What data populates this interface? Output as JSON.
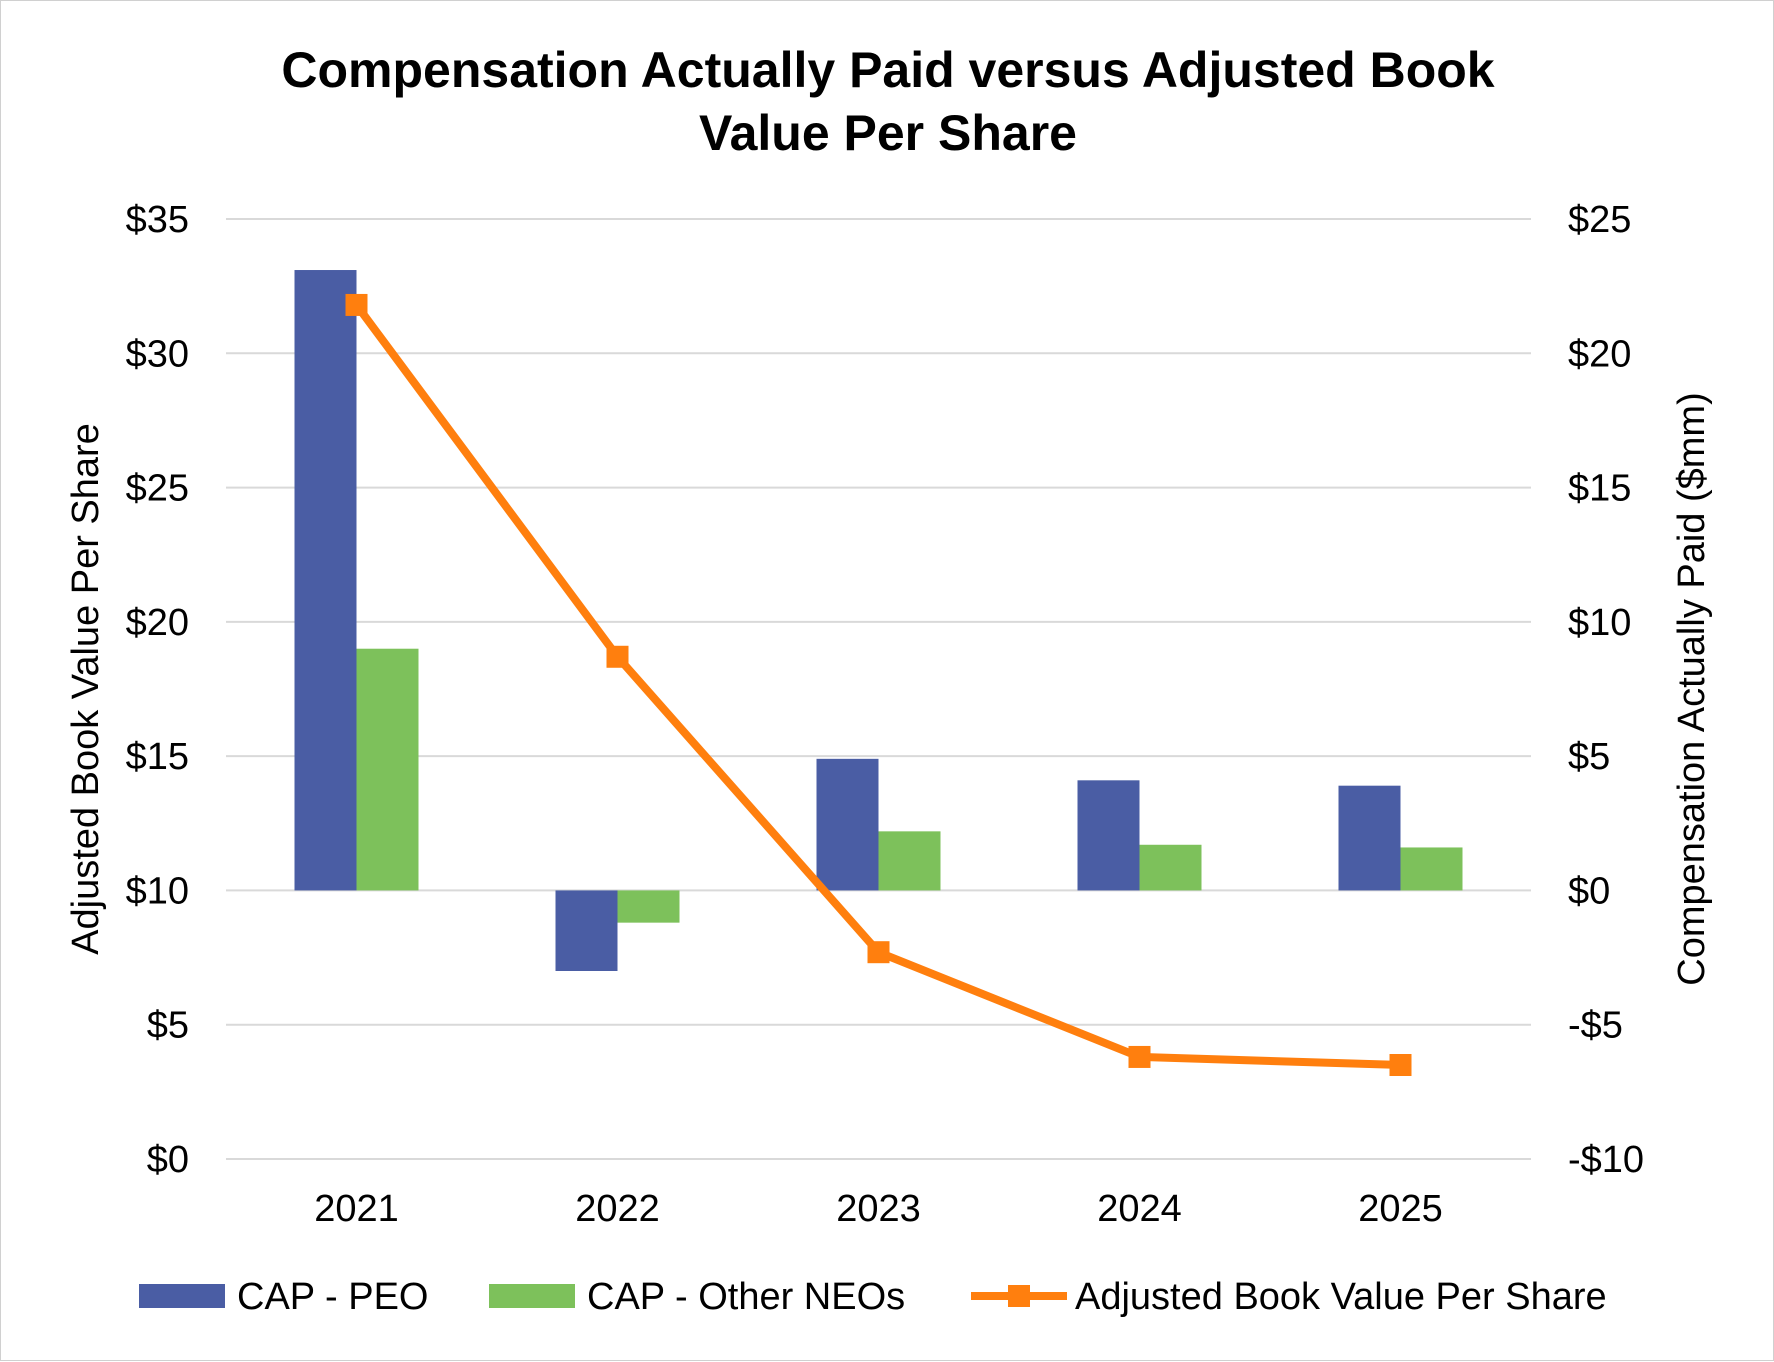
{
  "chart_data": {
    "type": "bar",
    "title": "Compensation Actually Paid versus Adjusted Book Value Per Share",
    "title_lines": [
      "Compensation Actually Paid versus Adjusted Book",
      "Value Per Share"
    ],
    "categories": [
      "2021",
      "2022",
      "2023",
      "2024",
      "2025"
    ],
    "y_left": {
      "label": "Adjusted Book Value Per Share",
      "range": [
        0,
        35
      ],
      "ticks": [
        0,
        5,
        10,
        15,
        20,
        25,
        30,
        35
      ],
      "tick_labels": [
        "$0",
        "$5",
        "$10",
        "$15",
        "$20",
        "$25",
        "$30",
        "$35"
      ]
    },
    "y_right": {
      "label": "Compensation Actually Paid ($mm)",
      "range": [
        -10,
        25
      ],
      "ticks": [
        -10,
        -5,
        0,
        5,
        10,
        15,
        20,
        25
      ],
      "tick_labels": [
        "-$10",
        "-$5",
        "$0",
        "$5",
        "$10",
        "$15",
        "$20",
        "$25"
      ]
    },
    "series": [
      {
        "name": "CAP - PEO",
        "type": "bar",
        "axis": "right",
        "color": "#4a5da4",
        "values": [
          23.1,
          -3.0,
          4.9,
          4.1,
          3.9
        ]
      },
      {
        "name": "CAP - Other NEOs",
        "type": "bar",
        "axis": "right",
        "color": "#7dc15b",
        "values": [
          9.0,
          -1.2,
          2.2,
          1.7,
          1.6
        ]
      },
      {
        "name": "Adjusted Book Value Per Share",
        "type": "line",
        "axis": "left",
        "color": "#ff7f0e",
        "marker": "square",
        "values": [
          31.8,
          18.7,
          7.7,
          3.8,
          3.5
        ]
      }
    ],
    "grid": true,
    "legend_position": "bottom"
  }
}
